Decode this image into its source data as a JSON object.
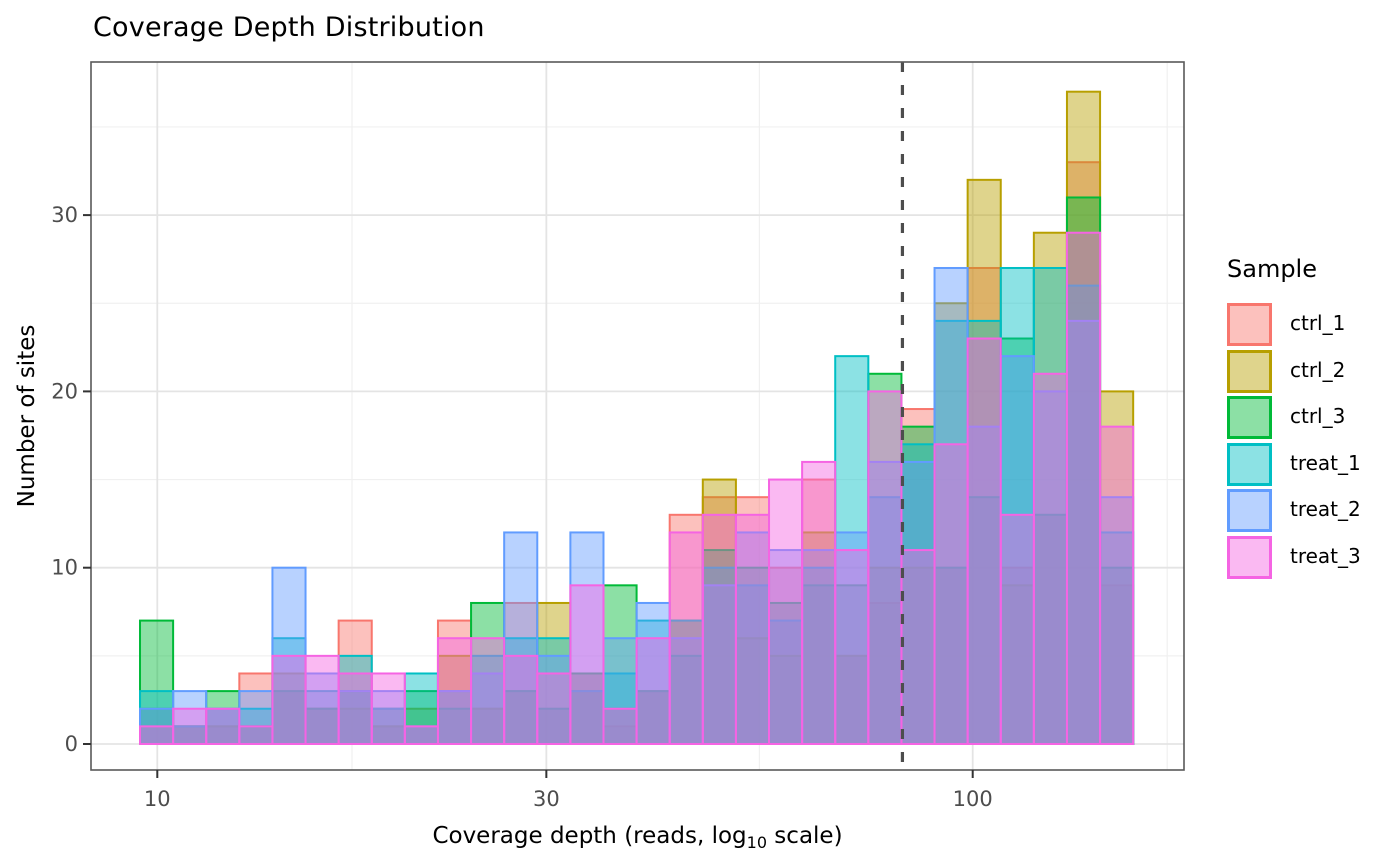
{
  "chart_data": {
    "type": "histogram",
    "title": "Coverage Depth Distribution",
    "xlabel": "Coverage depth (reads, log10 scale)",
    "xlabel_parts": {
      "pre": "Coverage depth (reads, log",
      "sub": "10",
      "post": " scale)"
    },
    "ylabel": "Number of sites",
    "x_scale": "log10",
    "x_ticks": [
      10,
      30,
      100
    ],
    "x_minor_gridlines": [
      17.33,
      54.75,
      173.2
    ],
    "y_ticks": [
      0,
      10,
      20,
      30
    ],
    "y_minor_gridlines": [
      5,
      15,
      25,
      35
    ],
    "ylim": [
      0,
      38.5
    ],
    "grid": true,
    "legend_position": "right",
    "legend_title": "Sample",
    "vline": {
      "x": 82,
      "style": "dashed",
      "color": "#4d4d4d"
    },
    "bins": {
      "log10_start": 0.9788,
      "log10_width": 0.0406,
      "count": 30
    },
    "bin_range_reads": [
      9.52,
      157.4
    ],
    "fill_alpha": 0.45,
    "series": [
      {
        "name": "ctrl_1",
        "color": "#F8766D",
        "counts": [
          1,
          1,
          1,
          4,
          3,
          2,
          7,
          1,
          1,
          7,
          2,
          8,
          2,
          4,
          1,
          3,
          13,
          14,
          14,
          10,
          15,
          5,
          8,
          19,
          10,
          27,
          10,
          13,
          33,
          9
        ]
      },
      {
        "name": "ctrl_2",
        "color": "#B79F00",
        "counts": [
          2,
          1,
          1,
          1,
          4,
          2,
          2,
          1,
          2,
          5,
          2,
          3,
          8,
          3,
          2,
          3,
          7,
          15,
          6,
          5,
          12,
          5,
          10,
          10,
          25,
          32,
          9,
          29,
          37,
          20
        ]
      },
      {
        "name": "ctrl_3",
        "color": "#00BA38",
        "counts": [
          7,
          1,
          3,
          1,
          3,
          2,
          3,
          2,
          3,
          2,
          8,
          3,
          2,
          4,
          9,
          3,
          5,
          11,
          10,
          8,
          9,
          9,
          21,
          18,
          10,
          14,
          23,
          13,
          31,
          10
        ]
      },
      {
        "name": "treat_1",
        "color": "#00BFC4",
        "counts": [
          3,
          1,
          2,
          2,
          6,
          3,
          5,
          2,
          4,
          3,
          5,
          6,
          6,
          3,
          4,
          7,
          7,
          10,
          9,
          7,
          10,
          22,
          14,
          17,
          24,
          24,
          27,
          27,
          26,
          12
        ]
      },
      {
        "name": "treat_2",
        "color": "#619CFF",
        "counts": [
          2,
          3,
          2,
          3,
          10,
          4,
          3,
          3,
          1,
          3,
          4,
          12,
          5,
          12,
          6,
          8,
          6,
          9,
          12,
          11,
          11,
          12,
          16,
          16,
          27,
          18,
          22,
          20,
          24,
          14
        ]
      },
      {
        "name": "treat_3",
        "color": "#F564E3",
        "counts": [
          1,
          2,
          2,
          1,
          5,
          5,
          4,
          4,
          1,
          6,
          6,
          5,
          4,
          9,
          2,
          6,
          12,
          13,
          13,
          15,
          16,
          11,
          20,
          11,
          17,
          23,
          13,
          21,
          29,
          18
        ]
      }
    ]
  },
  "legend": {
    "title": "Sample",
    "items": [
      "ctrl_1",
      "ctrl_2",
      "ctrl_3",
      "treat_1",
      "treat_2",
      "treat_3"
    ]
  },
  "style_colors": {
    "tick_label": "#4d4d4d",
    "panel_border": "#595959",
    "grid_major": "#e4e4e4",
    "grid_minor": "#f0f0f0",
    "text": "#000000"
  }
}
